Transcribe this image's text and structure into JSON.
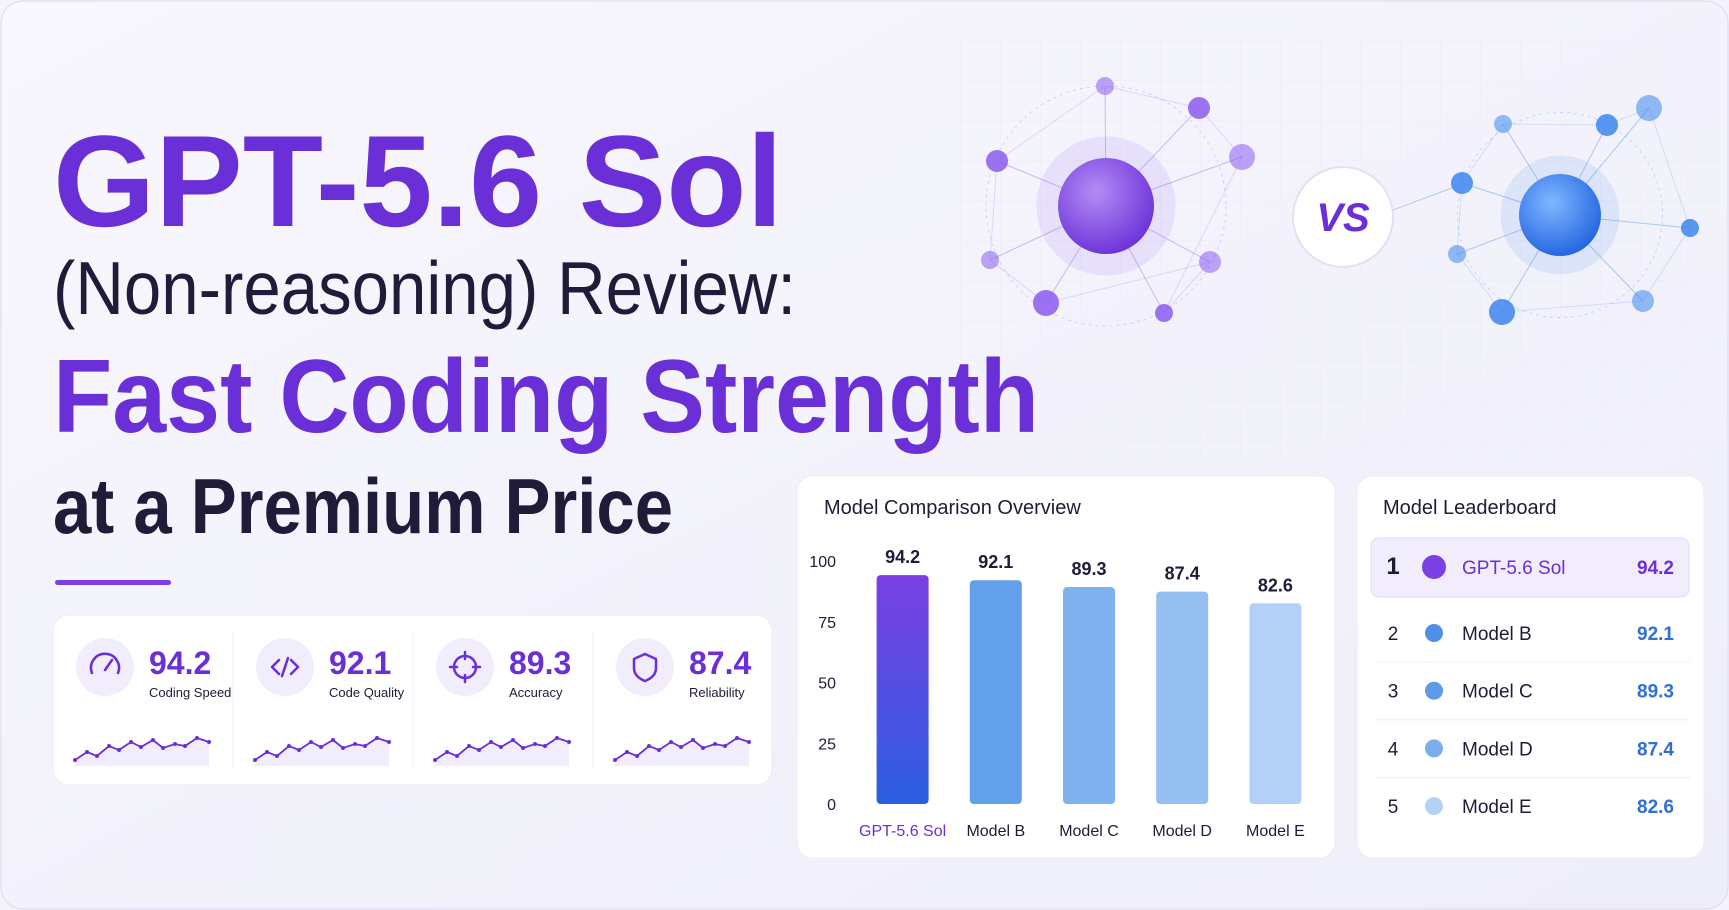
{
  "header": {
    "title_line1": "GPT-5.6 Sol",
    "title_line2": "(Non-reasoning) Review:",
    "title_line3": "Fast Coding Strength",
    "title_line4": "at a Premium Price"
  },
  "versus": "VS",
  "stats": [
    {
      "value": 94.2,
      "label": "Coding Speed"
    },
    {
      "value": 92.1,
      "label": "Code Quality"
    },
    {
      "value": 89.3,
      "label": "Accuracy"
    },
    {
      "value": 87.4,
      "label": "Reliability"
    }
  ],
  "chart_data": {
    "type": "bar",
    "title": "Model Comparison Overview",
    "categories": [
      "GPT-5.6 Sol",
      "Model B",
      "Model C",
      "Model D",
      "Model E"
    ],
    "values": [
      94.2,
      92.1,
      89.3,
      87.4,
      82.6
    ],
    "colors": [
      "#5b3fe0",
      "#63a0ec",
      "#80b2ef",
      "#95bff1",
      "#b3d1f6"
    ],
    "ylim": [
      0,
      100
    ],
    "yticks": [
      0,
      25,
      50,
      75,
      100
    ],
    "grid": false
  },
  "leaderboard": {
    "title": "Model Leaderboard",
    "rows": [
      {
        "rank": 1,
        "name": "GPT-5.6 Sol",
        "score": 94.2,
        "color": "#7b3fe4"
      },
      {
        "rank": 2,
        "name": "Model B",
        "score": 92.1,
        "color": "#4f8fe6"
      },
      {
        "rank": 3,
        "name": "Model C",
        "score": 89.3,
        "color": "#5e9ae8"
      },
      {
        "rank": 4,
        "name": "Model D",
        "score": 87.4,
        "color": "#7aaeee"
      },
      {
        "rank": 5,
        "name": "Model E",
        "score": 82.6,
        "color": "#b4d0f6"
      }
    ]
  }
}
